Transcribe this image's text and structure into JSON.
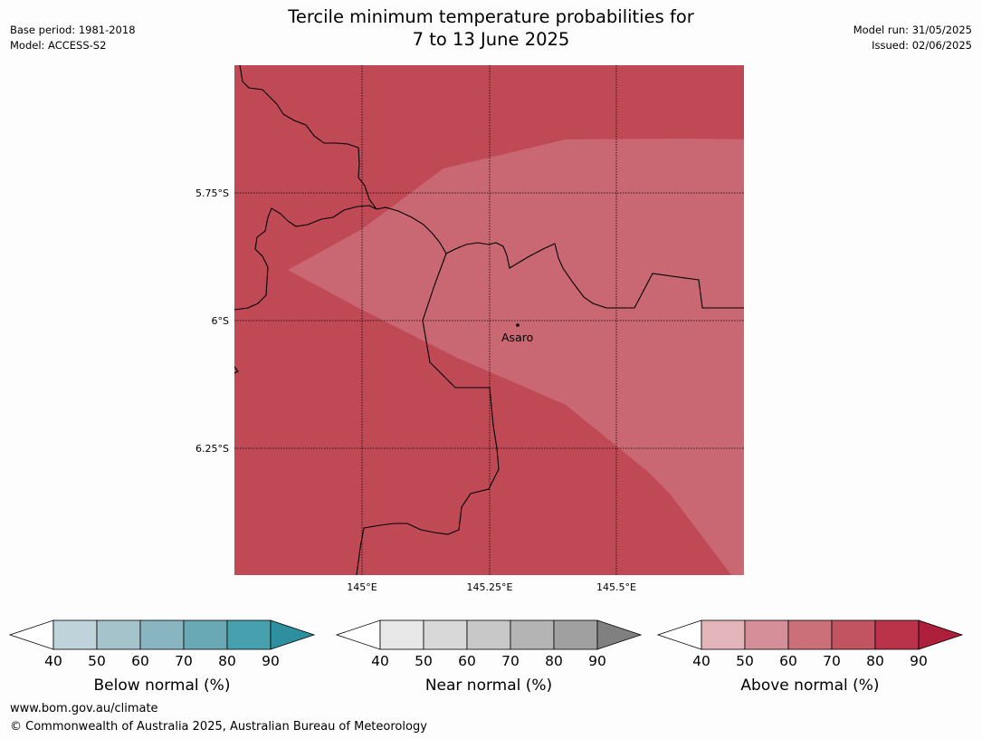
{
  "header": {
    "title_line1": "Tercile minimum temperature probabilities for",
    "title_line2": "7 to 13 June 2025",
    "base_period": "Base period: 1981-2018",
    "model": "Model: ACCESS-S2",
    "model_run": "Model run: 31/05/2025",
    "issued": "Issued: 02/06/2025"
  },
  "map": {
    "lat_labels": [
      "5.75°S",
      "6°S",
      "6.25°S"
    ],
    "lon_labels": [
      "145°E",
      "145.25°E",
      "145.5°E"
    ],
    "place_name": "Asaro",
    "colors": {
      "above_80_90": "#bf4a55",
      "above_70_80": "#c96872",
      "border": "#000000"
    }
  },
  "legends": [
    {
      "id": "below",
      "title": "Below normal (%)",
      "ticks": [
        "40",
        "50",
        "60",
        "70",
        "80",
        "90"
      ],
      "colors": [
        "#bfd4da",
        "#a4c3ca",
        "#88b5c0",
        "#69a9b6",
        "#47a0ae",
        "#2e8f9f"
      ]
    },
    {
      "id": "near",
      "title": "Near normal (%)",
      "ticks": [
        "40",
        "50",
        "60",
        "70",
        "80",
        "90"
      ],
      "colors": [
        "#e7e7e7",
        "#d8d8d8",
        "#c8c8c8",
        "#b4b4b4",
        "#a0a0a0",
        "#808080"
      ]
    },
    {
      "id": "above",
      "title": "Above normal (%)",
      "ticks": [
        "40",
        "50",
        "60",
        "70",
        "80",
        "90"
      ],
      "colors": [
        "#e1b5ba",
        "#d58f98",
        "#cb7078",
        "#c25461",
        "#bb3348",
        "#ad1f3a"
      ]
    }
  ],
  "footer": {
    "url": "www.bom.gov.au/climate",
    "copyright": "© Commonwealth of Australia 2025, Australian Bureau of Meteorology"
  }
}
